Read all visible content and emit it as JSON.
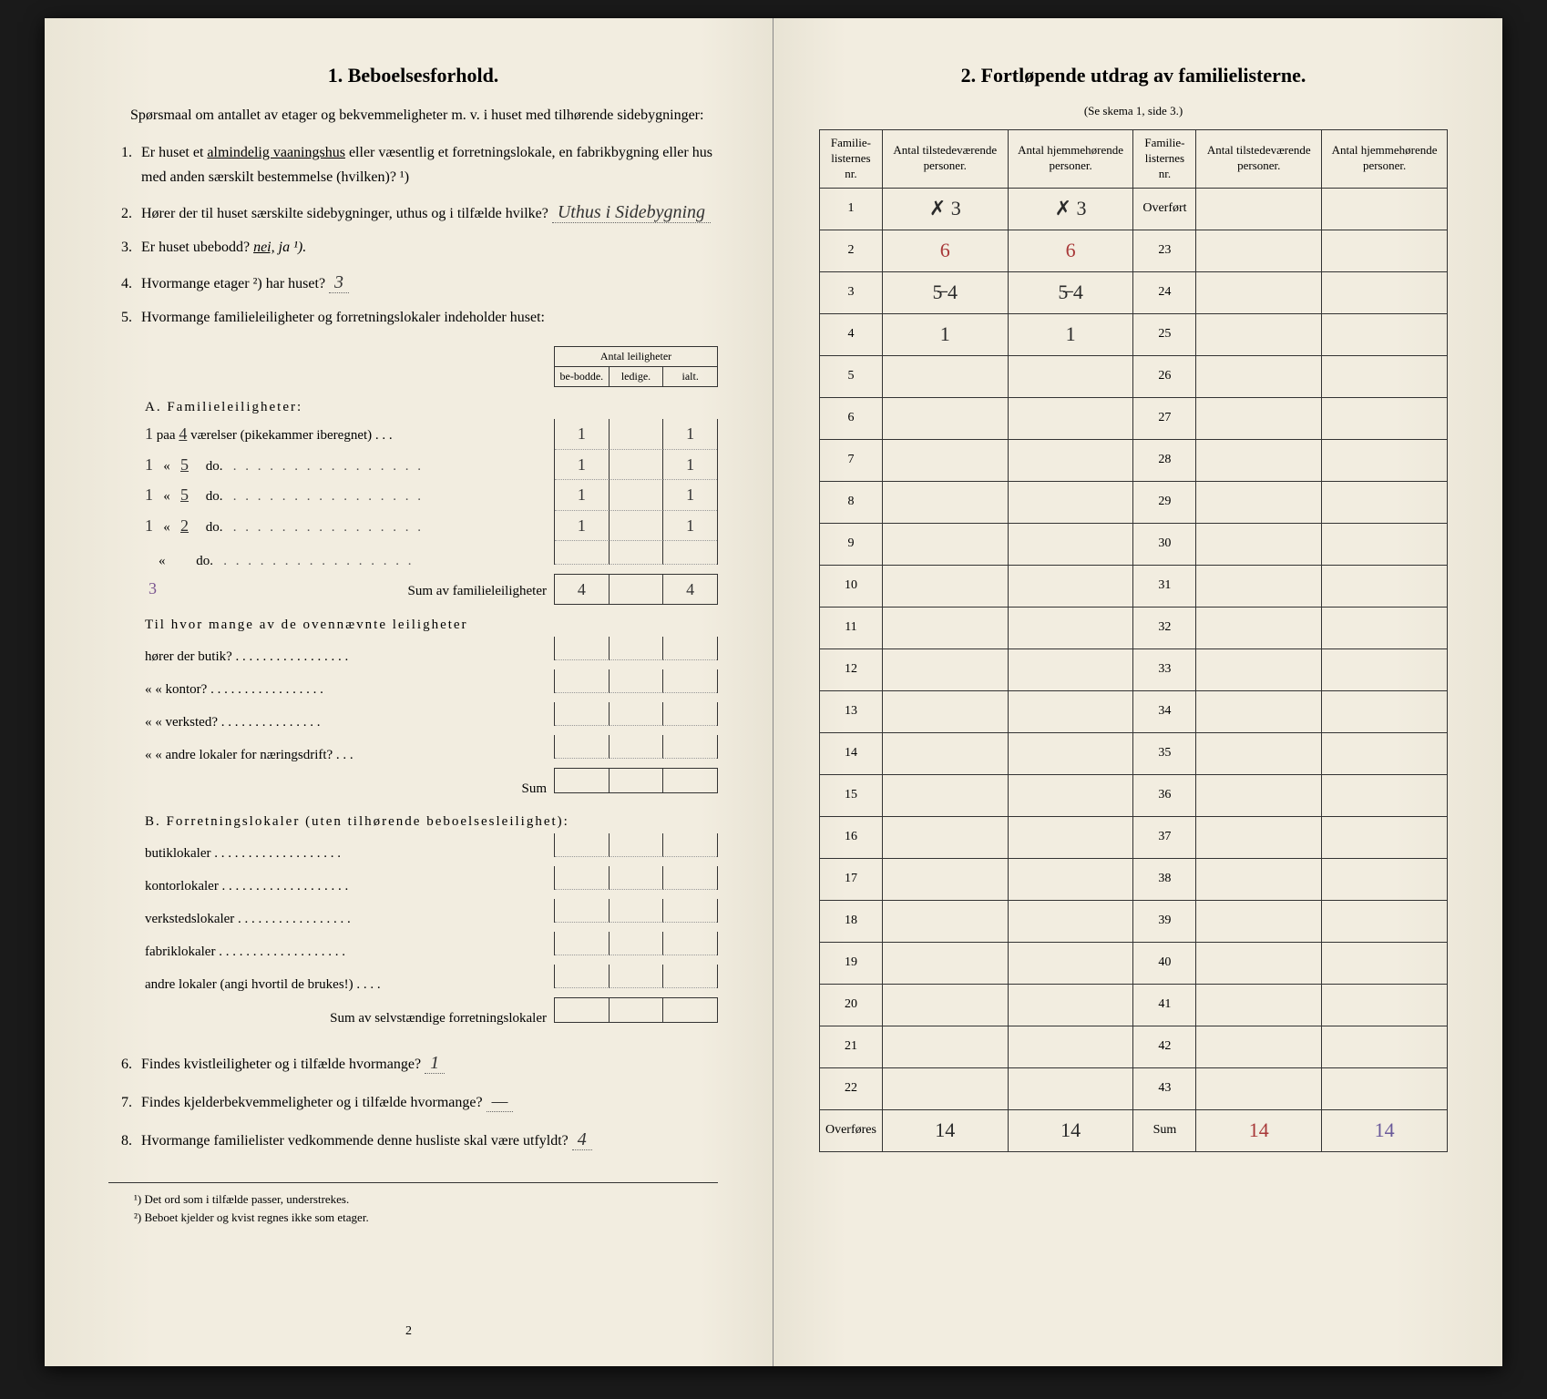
{
  "left": {
    "title": "1.   Beboelsesforhold.",
    "intro": "Spørsmaal om antallet av etager og bekvemmeligheter m. v. i huset med tilhørende sidebygninger:",
    "q1_pre": "Er huset et ",
    "q1_underline": "almindelig vaaningshus",
    "q1_post": " eller væsentlig et forretningslokale, en fabrikbygning eller hus med anden særskilt bestemmelse (hvilken)? ¹)",
    "q2": "Hører der til huset særskilte sidebygninger, uthus og i tilfælde hvilke?",
    "q2_ans": "Uthus i Sidebygning",
    "q3_pre": "Er huset ubebodd? ",
    "q3_nei": "nei,",
    "q3_ja": " ja ¹).",
    "q4_pre": "Hvormange etager ²) har huset?",
    "q4_ans": "3",
    "q5": "Hvormange familieleiligheter og forretningslokaler indeholder huset:",
    "tblA_header_top": "Antal leiligheter",
    "tblA_h1": "be-bodde.",
    "tblA_h2": "ledige.",
    "tblA_h3": "ialt.",
    "A_title": "A. Familieleiligheter:",
    "A_row1_n": "1",
    "A_row1_r": "4",
    "A_row1_text": " værelser (pikekammer iberegnet) . . .",
    "A_row1_c1": "1",
    "A_row1_c3": "1",
    "A_row2_n": "1",
    "A_row2_r": "5",
    "A_row2_c1": "1",
    "A_row2_c3": "1",
    "A_row3_n": "1",
    "A_row3_r": "5",
    "A_row3_c1": "1",
    "A_row3_c3": "1",
    "A_row4_n": "1",
    "A_row4_r": "2",
    "A_row4_c1": "1",
    "A_row4_c3": "1",
    "A_do": "do.",
    "A_sum_label": "Sum av familieleiligheter",
    "A_sum_c1": "4",
    "A_sum_c3": "4",
    "A_sum_extra": "3",
    "ovenn_intro": "Til hvor mange av de ovennævnte leiligheter",
    "ovenn1": "hører der butik? . . . . . . . . . . . . . . . . .",
    "ovenn2": "«      «   kontor? . . . . . . . . . . . . . . . . .",
    "ovenn3": "«      «   verksted? . . . . . . . . . . . . . . .",
    "ovenn4": "«      «   andre lokaler for næringsdrift? . . .",
    "ovenn_sum": "Sum",
    "B_title": "B. Forretningslokaler (uten tilhørende beboelsesleilighet):",
    "B_r1": "butiklokaler . . . . . . . . . . . . . . . . . . .",
    "B_r2": "kontorlokaler . . . . . . . . . . . . . . . . . . .",
    "B_r3": "verkstedslokaler . . . . . . . . . . . . . . . . .",
    "B_r4": "fabriklokaler . . . . . . . . . . . . . . . . . . .",
    "B_r5": "andre lokaler (angi hvortil de brukes!) . . . .",
    "B_sum": "Sum av selvstændige forretningslokaler",
    "q6": "Findes kvistleiligheter og i tilfælde hvormange?",
    "q6_ans": "1",
    "q7": "Findes kjelderbekvemmeligheter og i tilfælde hvormange?",
    "q7_ans": "—",
    "q8": "Hvormange familielister vedkommende denne husliste skal være utfyldt?",
    "q8_ans": "4",
    "fn1": "¹) Det ord som i tilfælde passer, understrekes.",
    "fn2": "²) Beboet kjelder og kvist regnes ikke som etager.",
    "pagenum": "2"
  },
  "right": {
    "title": "2.   Fortløpende utdrag av familielisterne.",
    "subtitle": "(Se skema 1, side 3.)",
    "h1": "Familie-listernes nr.",
    "h2": "Antal tilstedeværende personer.",
    "h3": "Antal hjemmehørende personer.",
    "overfort": "Overført",
    "overfores": "Overføres",
    "sum": "Sum",
    "rows_left": [
      {
        "nr": "1",
        "a": "✗ 3",
        "b": "✗ 3"
      },
      {
        "nr": "2",
        "a": "6",
        "b": "6"
      },
      {
        "nr": "3",
        "a": "5̶ 4",
        "b": "5̶ 4"
      },
      {
        "nr": "4",
        "a": "1",
        "b": "1"
      },
      {
        "nr": "5",
        "a": "",
        "b": ""
      },
      {
        "nr": "6",
        "a": "",
        "b": ""
      },
      {
        "nr": "7",
        "a": "",
        "b": ""
      },
      {
        "nr": "8",
        "a": "",
        "b": ""
      },
      {
        "nr": "9",
        "a": "",
        "b": ""
      },
      {
        "nr": "10",
        "a": "",
        "b": ""
      },
      {
        "nr": "11",
        "a": "",
        "b": ""
      },
      {
        "nr": "12",
        "a": "",
        "b": ""
      },
      {
        "nr": "13",
        "a": "",
        "b": ""
      },
      {
        "nr": "14",
        "a": "",
        "b": ""
      },
      {
        "nr": "15",
        "a": "",
        "b": ""
      },
      {
        "nr": "16",
        "a": "",
        "b": ""
      },
      {
        "nr": "17",
        "a": "",
        "b": ""
      },
      {
        "nr": "18",
        "a": "",
        "b": ""
      },
      {
        "nr": "19",
        "a": "",
        "b": ""
      },
      {
        "nr": "20",
        "a": "",
        "b": ""
      },
      {
        "nr": "21",
        "a": "",
        "b": ""
      },
      {
        "nr": "22",
        "a": "",
        "b": ""
      }
    ],
    "rows_right_nr": [
      "",
      "23",
      "24",
      "25",
      "26",
      "27",
      "28",
      "29",
      "30",
      "31",
      "32",
      "33",
      "34",
      "35",
      "36",
      "37",
      "38",
      "39",
      "40",
      "41",
      "42",
      "43"
    ],
    "overfores_a": "14",
    "overfores_b": "14",
    "sum_a": "14",
    "sum_b": "14"
  }
}
